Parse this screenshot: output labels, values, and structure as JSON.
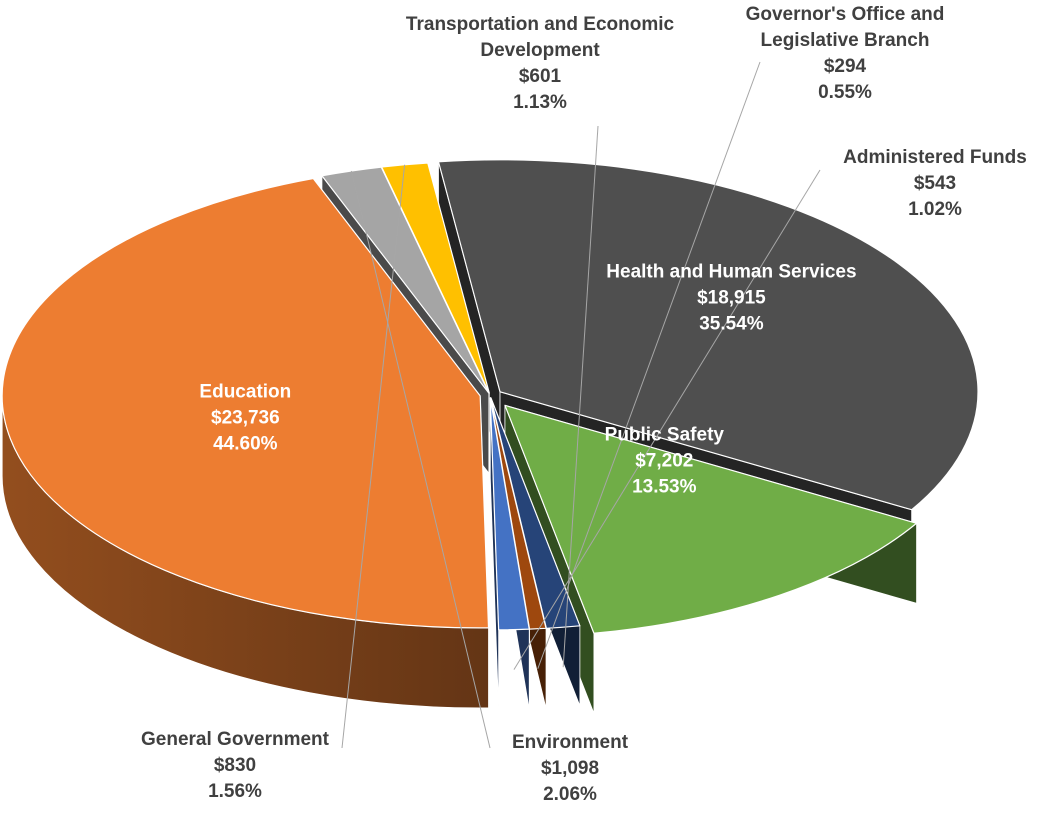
{
  "chart_data": {
    "type": "pie",
    "style": "3d-exploded",
    "title": "",
    "legend": "none",
    "label_format": "category, value, percent",
    "slices": [
      {
        "name": "Education",
        "value": "$23,736",
        "amount": 23736,
        "percent": "44.60%",
        "color": "#ed7d31",
        "label_position": "inside"
      },
      {
        "name": "Environment",
        "value": "$1,098",
        "amount": 1098,
        "percent": "2.06%",
        "color": "#a5a5a5",
        "label_position": "outside"
      },
      {
        "name": "General Government",
        "value": "$830",
        "amount": 830,
        "percent": "1.56%",
        "color": "#ffc000",
        "label_position": "outside"
      },
      {
        "name": "Health and Human Services",
        "value": "$18,915",
        "amount": 18915,
        "percent": "35.54%",
        "color": "#4f4f4f",
        "label_position": "inside"
      },
      {
        "name": "Public Safety",
        "value": "$7,202",
        "amount": 7202,
        "percent": "13.53%",
        "color": "#70ad47",
        "label_position": "inside"
      },
      {
        "name": "Transportation and Economic Development",
        "value": "$601",
        "amount": 601,
        "percent": "1.13%",
        "color": "#264478",
        "label_position": "outside"
      },
      {
        "name": "Governor's Office and Legislative Branch",
        "value": "$294",
        "amount": 294,
        "percent": "0.55%",
        "color": "#9e480e",
        "label_position": "outside"
      },
      {
        "name": "Administered Funds",
        "value": "$543",
        "amount": 543,
        "percent": "1.02%",
        "color": "#4472c4",
        "label_position": "outside"
      }
    ]
  }
}
